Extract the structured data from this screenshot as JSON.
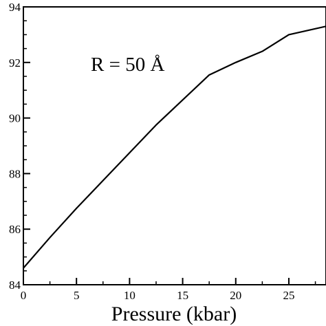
{
  "chart_data": {
    "type": "line",
    "xlabel": "Pressure (kbar)",
    "ylabel": "",
    "xlim": [
      0,
      28.5
    ],
    "ylim": [
      84,
      94
    ],
    "x_ticks": [
      0,
      5,
      10,
      15,
      20,
      25
    ],
    "y_ticks": [
      84,
      86,
      88,
      90,
      92,
      94
    ],
    "x_tick_labels": [
      "0",
      "5",
      "10",
      "15",
      "20",
      "25"
    ],
    "y_tick_labels": [
      "84",
      "86",
      "88",
      "90",
      "92",
      "94"
    ],
    "grid": false,
    "annotation": "R = 50 Å",
    "series": [
      {
        "color": "#000000",
        "x": [
          0,
          2.5,
          5,
          7.5,
          10,
          12.5,
          15,
          17.5,
          20,
          22.5,
          25,
          28.5
        ],
        "y": [
          84.6,
          85.7,
          86.75,
          87.75,
          88.75,
          89.75,
          90.65,
          91.55,
          92.0,
          92.4,
          93.0,
          93.3
        ]
      }
    ]
  }
}
